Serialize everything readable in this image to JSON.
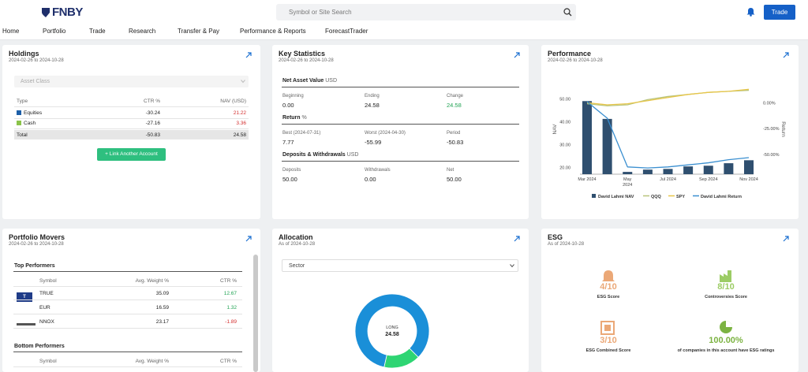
{
  "header": {
    "logo": "FNBY",
    "search_placeholder": "Symbol or Site Search",
    "trade_button": "Trade"
  },
  "nav": [
    "Home",
    "Portfolio",
    "Trade",
    "Research",
    "Transfer & Pay",
    "Performance & Reports",
    "ForecastTrader"
  ],
  "holdings": {
    "title": "Holdings",
    "date_range": "2024-02-26 to 2024-10-28",
    "filter": "Asset Class",
    "columns": [
      "Type",
      "CTR %",
      "NAV (USD)"
    ],
    "rows": [
      [
        "Equities",
        "-30.24",
        "21.22"
      ],
      [
        "Cash",
        "-27.16",
        "3.36"
      ]
    ],
    "total": [
      "Total",
      "-50.83",
      "24.58"
    ],
    "link_button": "Link Another Account"
  },
  "key_statistics": {
    "title": "Key Statistics",
    "date_range": "2024-02-26 to 2024-10-28",
    "sections": [
      {
        "title": "Net Asset Value",
        "unit": "USD",
        "items": [
          {
            "label": "Beginning",
            "value": "0.00"
          },
          {
            "label": "Ending",
            "value": "24.58"
          },
          {
            "label": "Change",
            "value": "24.58"
          }
        ]
      },
      {
        "title": "Return",
        "unit": "%",
        "items": [
          {
            "label": "Best (2024-07-31)",
            "value": "7.77"
          },
          {
            "label": "Worst (2024-04-30)",
            "value": "-55.99"
          },
          {
            "label": "Period",
            "value": "-50.83"
          }
        ]
      },
      {
        "title": "Deposits & Withdrawals",
        "unit": "USD",
        "items": [
          {
            "label": "Deposits",
            "value": "50.00"
          },
          {
            "label": "Withdrawals",
            "value": "0.00"
          },
          {
            "label": "Net",
            "value": "50.00"
          }
        ]
      }
    ]
  },
  "performance": {
    "title": "Performance",
    "date_range": "2024-02-26 to 2024-10-28",
    "chart_data": {
      "type": "bar_line",
      "y_label": "NAV",
      "y2_label": "Return",
      "categories": [
        "Mar 2024",
        null,
        "May 2024",
        null,
        "Jul 2024",
        null,
        "Sep 2024",
        null,
        "Nov 2024"
      ],
      "series": [
        {
          "name": "David Lahmi NAV",
          "type": "bar",
          "color": "#2f4f6f",
          "values": [
            49,
            41.2,
            18,
            19,
            19.3,
            20.4,
            20.7,
            21.8,
            23.1
          ]
        },
        {
          "name": "QQQ",
          "type": "line",
          "axis": "y2",
          "color": "#b8c47c",
          "values": [
            -1,
            -3,
            -2,
            3,
            6,
            8,
            10,
            11,
            12
          ]
        },
        {
          "name": "SPY",
          "type": "line",
          "axis": "y2",
          "color": "#e8c64a",
          "values": [
            0,
            -2,
            -1,
            2,
            5,
            8,
            10,
            11,
            13
          ]
        },
        {
          "name": "David Lahmi Return",
          "type": "line",
          "axis": "y2",
          "color": "#3a8fd0",
          "values": [
            1,
            -15,
            -62,
            -63,
            -62,
            -60,
            -58,
            -55,
            -53
          ]
        }
      ],
      "ylim": [
        17,
        56
      ],
      "yticks": [
        {
          "value": 20,
          "label": "20.00"
        },
        {
          "value": 30,
          "label": "30.00"
        },
        {
          "value": 40,
          "label": "40.00"
        },
        {
          "value": 50,
          "label": "50.00"
        }
      ],
      "y2lim": [
        -69,
        17
      ],
      "y2ticks": [
        {
          "value": 0,
          "label": "0.00%"
        },
        {
          "value": -25,
          "label": "-25.00%"
        },
        {
          "value": -50,
          "label": "-50.00%"
        }
      ],
      "grid": false
    }
  },
  "portfolio_movers": {
    "title": "Portfolio Movers",
    "date_range": "2024-02-26 to 2024-10-28",
    "top": {
      "title": "Top Performers",
      "columns": [
        "Symbol",
        "Avg. Weight %",
        "CTR %"
      ],
      "rows": [
        [
          "TRUE",
          "35.09",
          "12.67"
        ],
        [
          "EUR",
          "16.59",
          "1.32"
        ],
        [
          "NNOX",
          "23.17",
          "-1.89"
        ]
      ]
    },
    "bottom": {
      "title": "Bottom Performers",
      "columns": [
        "Symbol",
        "Avg. Weight %",
        "CTR %"
      ]
    }
  },
  "allocation": {
    "title": "Allocation",
    "as_of": "As of 2024-10-28",
    "filter": "Sector",
    "chart_data": {
      "type": "donut",
      "center_label": "LONG",
      "center_value": "24.58",
      "values": [
        16,
        84
      ],
      "colors": [
        "#2ed573",
        "#1a8fd8"
      ]
    }
  },
  "esg": {
    "title": "ESG",
    "as_of": "As of 2024-10-28",
    "items": [
      {
        "value": "4/10",
        "label": "ESG Score"
      },
      {
        "value": "8/10",
        "label": "Controversies Score"
      },
      {
        "value": "3/10",
        "label": "ESG Combined Score"
      },
      {
        "value": "100.00%",
        "label": "of companies in this account have ESG ratings"
      }
    ]
  }
}
